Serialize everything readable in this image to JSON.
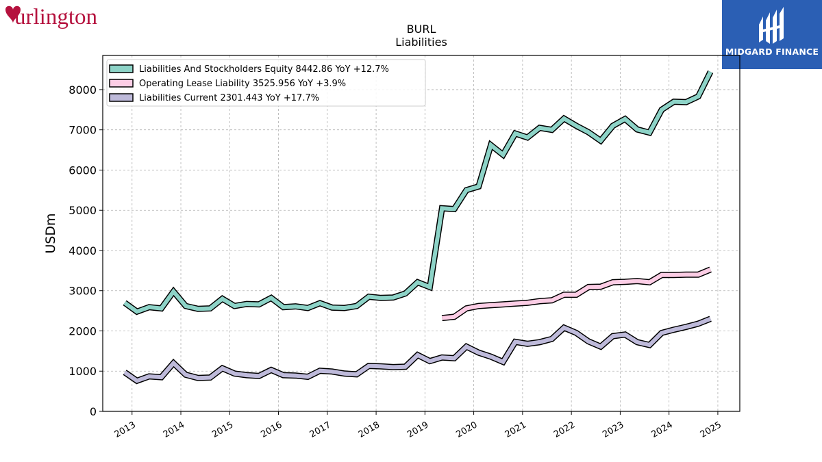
{
  "brand": {
    "name": "Burlington",
    "color": "#b5123e"
  },
  "badge": {
    "name": "MIDGARD FINANCE",
    "color": "#2b5fb4"
  },
  "chart_data": {
    "type": "line",
    "title": "BURL",
    "subtitle": "Liabilities",
    "ylabel": "USDm",
    "ylim": [
      0,
      8850
    ],
    "xlim": [
      2012.4,
      2025.45
    ],
    "yticks": [
      0,
      1000,
      2000,
      3000,
      4000,
      5000,
      6000,
      7000,
      8000
    ],
    "xticks": [
      "2013",
      "2014",
      "2015",
      "2016",
      "2017",
      "2018",
      "2019",
      "2020",
      "2021",
      "2022",
      "2023",
      "2024",
      "2025"
    ],
    "grid": true,
    "legend_position": "top-left",
    "series": [
      {
        "name": "Liabilities And Stockholders Equity",
        "legend_label": "Liabilities And Stockholders Equity  8442.86 YoY +12.7%",
        "color": "#8dd3c7",
        "x": [
          2012.85,
          2013.1,
          2013.35,
          2013.6,
          2013.85,
          2014.1,
          2014.35,
          2014.6,
          2014.85,
          2015.1,
          2015.35,
          2015.6,
          2015.85,
          2016.1,
          2016.35,
          2016.6,
          2016.85,
          2017.1,
          2017.35,
          2017.6,
          2017.85,
          2018.1,
          2018.35,
          2018.6,
          2018.85,
          2019.1,
          2019.35,
          2019.6,
          2019.85,
          2020.1,
          2020.35,
          2020.6,
          2020.85,
          2021.1,
          2021.35,
          2021.6,
          2021.85,
          2022.1,
          2022.35,
          2022.6,
          2022.85,
          2023.1,
          2023.35,
          2023.6,
          2023.85,
          2024.1,
          2024.35,
          2024.6,
          2024.85
        ],
        "values": [
          2700,
          2480,
          2590,
          2560,
          2980,
          2620,
          2550,
          2560,
          2800,
          2620,
          2670,
          2660,
          2820,
          2590,
          2610,
          2570,
          2690,
          2580,
          2570,
          2620,
          2850,
          2820,
          2830,
          2930,
          3210,
          3090,
          5050,
          5030,
          5500,
          5590,
          6620,
          6380,
          6910,
          6810,
          7050,
          7000,
          7280,
          7100,
          6940,
          6730,
          7100,
          7270,
          7010,
          6930,
          7500,
          7700,
          7690,
          7830,
          8443
        ]
      },
      {
        "name": "Operating Lease Liability",
        "legend_label": "Operating Lease Liability  3525.956 YoY +3.9%",
        "color": "#fccde5",
        "x": [
          2019.35,
          2019.6,
          2019.85,
          2020.1,
          2020.35,
          2020.6,
          2020.85,
          2021.1,
          2021.35,
          2021.6,
          2021.85,
          2022.1,
          2022.35,
          2022.6,
          2022.85,
          2023.1,
          2023.35,
          2023.6,
          2023.85,
          2024.1,
          2024.35,
          2024.6,
          2024.85
        ],
        "values": [
          2320,
          2350,
          2560,
          2620,
          2640,
          2660,
          2680,
          2700,
          2740,
          2760,
          2900,
          2900,
          3090,
          3100,
          3210,
          3220,
          3240,
          3210,
          3390,
          3390,
          3400,
          3400,
          3526
        ]
      },
      {
        "name": "Liabilities Current",
        "legend_label": "Liabilities Current  2301.443 YoY +17.7%",
        "color": "#bebada",
        "x": [
          2012.85,
          2013.1,
          2013.35,
          2013.6,
          2013.85,
          2014.1,
          2014.35,
          2014.6,
          2014.85,
          2015.1,
          2015.35,
          2015.6,
          2015.85,
          2016.1,
          2016.35,
          2016.6,
          2016.85,
          2017.1,
          2017.35,
          2017.6,
          2017.85,
          2018.1,
          2018.35,
          2018.6,
          2018.85,
          2019.1,
          2019.35,
          2019.6,
          2019.85,
          2020.1,
          2020.35,
          2020.6,
          2020.85,
          2021.1,
          2021.35,
          2021.6,
          2021.85,
          2022.1,
          2022.35,
          2022.6,
          2022.85,
          2023.1,
          2023.35,
          2023.6,
          2023.85,
          2024.1,
          2024.35,
          2024.6,
          2024.85
        ],
        "values": [
          970,
          760,
          870,
          850,
          1200,
          910,
          830,
          840,
          1070,
          940,
          900,
          880,
          1030,
          900,
          890,
          860,
          1010,
          990,
          940,
          920,
          1130,
          1120,
          1100,
          1110,
          1400,
          1250,
          1340,
          1320,
          1610,
          1460,
          1360,
          1230,
          1730,
          1680,
          1720,
          1800,
          2080,
          1950,
          1740,
          1610,
          1870,
          1910,
          1720,
          1650,
          1950,
          2030,
          2100,
          2180,
          2301
        ]
      }
    ]
  }
}
